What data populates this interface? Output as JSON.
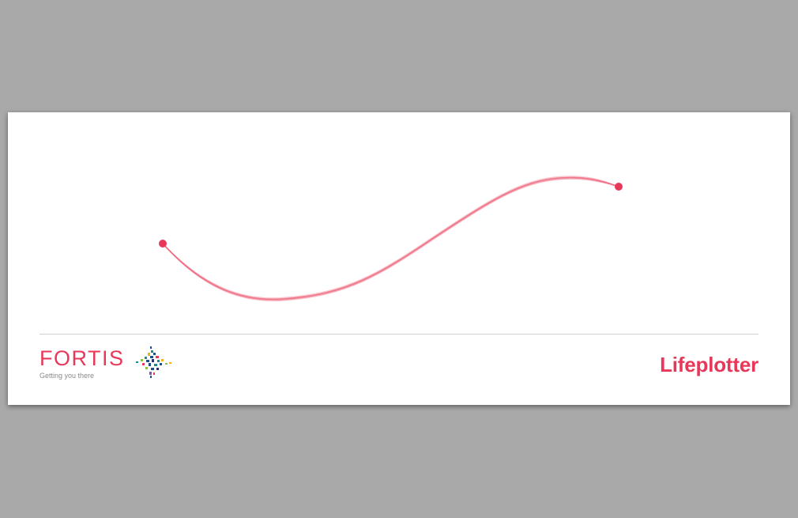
{
  "brand_color": "#e8385a",
  "curve_color": "#ef6a80",
  "logo": {
    "name": "FORTIS",
    "tagline": "Getting you there",
    "mark_colors": [
      "#1c4f8c",
      "#1b8c8c",
      "#f0b21b",
      "#8cc63f",
      "#e8385a",
      "#2e2e6e",
      "#7a5ba8"
    ]
  },
  "product": {
    "name": "Lifeplotter"
  }
}
